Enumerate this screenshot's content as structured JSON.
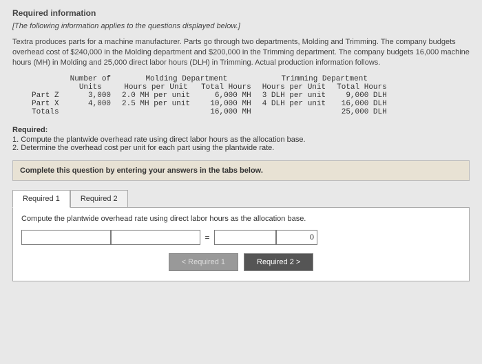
{
  "header": {
    "title": "Required information",
    "subtitle": "[The following information applies to the questions displayed below.]"
  },
  "intro": "Textra produces parts for a machine manufacturer. Parts go through two departments, Molding and Trimming. The company budgets overhead cost of $240,000 in the Molding department and $200,000 in the Trimming department. The company budgets 16,000 machine hours (MH) in Molding and 25,000 direct labor hours (DLH) in Trimming. Actual production information follows.",
  "table": {
    "col_headers": {
      "units": "Number of\nUnits",
      "mold_dept": "Molding Department",
      "mold_hpu": "Hours per Unit",
      "mold_total": "Total Hours",
      "trim_dept": "Trimming Department",
      "trim_hpu": "Hours per Unit",
      "trim_total": "Total Hours"
    },
    "rows": [
      {
        "label": "Part Z",
        "units": "3,000",
        "mh_per": "2.0 MH per unit",
        "mh_total": "6,000 MH",
        "dlh_per": "3 DLH per unit",
        "dlh_total": "9,000 DLH"
      },
      {
        "label": "Part X",
        "units": "4,000",
        "mh_per": "2.5 MH per unit",
        "mh_total": "10,000 MH",
        "dlh_per": "4 DLH per unit",
        "dlh_total": "16,000 DLH"
      },
      {
        "label": "Totals",
        "units": "",
        "mh_per": "",
        "mh_total": "16,000 MH",
        "dlh_per": "",
        "dlh_total": "25,000 DLH"
      }
    ]
  },
  "required": {
    "heading": "Required:",
    "items": [
      "1. Compute the plantwide overhead rate using direct labor hours as the allocation base.",
      "2. Determine the overhead cost per unit for each part using the plantwide rate."
    ]
  },
  "instruction": "Complete this question by entering your answers in the tabs below.",
  "tabs": {
    "t1": "Required 1",
    "t2": "Required 2"
  },
  "panel": {
    "instr": "Compute the plantwide overhead rate using direct labor hours as the allocation base.",
    "value": "0"
  },
  "nav": {
    "prev": "< Required 1",
    "next": "Required 2  >"
  }
}
